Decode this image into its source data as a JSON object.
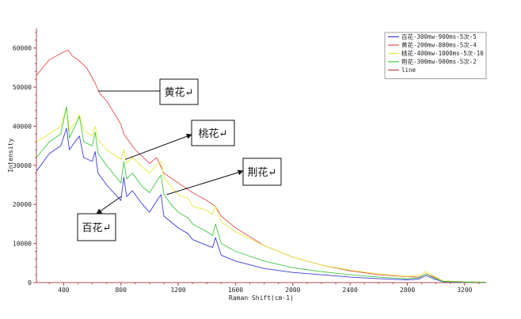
{
  "chart_data": {
    "type": "line",
    "xlabel": "Raman Shift(cm-1)",
    "ylabel": "Intensity",
    "xlim": [
      210,
      3350
    ],
    "ylim": [
      0,
      65000
    ],
    "x_ticks": [
      400,
      800,
      1200,
      1600,
      2000,
      2400,
      2800,
      3200
    ],
    "y_ticks": [
      0,
      10000,
      20000,
      30000,
      40000,
      50000,
      60000
    ],
    "grid": false,
    "legend_position": "top-right",
    "series": [
      {
        "name": "百花-300mw-900ms-5次-5",
        "color": "#3a3adf",
        "x": [
          210,
          300,
          380,
          420,
          440,
          480,
          510,
          540,
          600,
          620,
          640,
          700,
          800,
          820,
          840,
          880,
          950,
          1000,
          1060,
          1080,
          1100,
          1150,
          1200,
          1270,
          1300,
          1400,
          1440,
          1460,
          1500,
          1600,
          1800,
          2000,
          2200,
          2400,
          2600,
          2800,
          2880,
          2930,
          2980,
          3050,
          3200,
          3350
        ],
        "y": [
          28500,
          33000,
          35000,
          39500,
          34000,
          36000,
          37500,
          32000,
          31000,
          33500,
          28000,
          25000,
          21000,
          27000,
          22000,
          23500,
          20000,
          18000,
          21500,
          22500,
          17000,
          15500,
          14000,
          12500,
          11000,
          9500,
          9000,
          11500,
          7000,
          5500,
          3600,
          2600,
          2000,
          1400,
          1000,
          700,
          900,
          1800,
          1000,
          200,
          100,
          50
        ]
      },
      {
        "name": "黄花-200mw-800ms-5次-4",
        "color": "#e05050",
        "x": [
          210,
          300,
          350,
          400,
          430,
          460,
          500,
          560,
          620,
          650,
          700,
          800,
          820,
          900,
          1000,
          1050,
          1100,
          1200,
          1300,
          1400,
          1460,
          1500,
          1600,
          1800,
          2000,
          2200,
          2400,
          2600,
          2800,
          2880,
          2930,
          2980,
          3050,
          3200,
          3350
        ],
        "y": [
          53000,
          57000,
          58000,
          59000,
          59500,
          58000,
          57000,
          55000,
          51000,
          48500,
          46500,
          40500,
          38000,
          34000,
          30500,
          32000,
          28000,
          25500,
          23000,
          21000,
          19500,
          17000,
          14000,
          9500,
          6500,
          4500,
          3000,
          2000,
          1500,
          1400,
          2200,
          1500,
          400,
          200,
          100
        ]
      },
      {
        "name": "桃花-400mw-1000ms-5次-10",
        "color": "#e8e840",
        "x": [
          210,
          300,
          380,
          420,
          440,
          480,
          510,
          540,
          600,
          620,
          640,
          700,
          800,
          820,
          840,
          880,
          950,
          1000,
          1060,
          1080,
          1100,
          1150,
          1200,
          1270,
          1300,
          1400,
          1440,
          1460,
          1500,
          1600,
          1800,
          2000,
          2200,
          2400,
          2600,
          2800,
          2880,
          2930,
          2980,
          3050,
          3200,
          3350
        ],
        "y": [
          36000,
          38000,
          40000,
          45000,
          39000,
          41000,
          43000,
          39000,
          37500,
          40000,
          36500,
          34000,
          31500,
          34000,
          30500,
          32000,
          29500,
          28000,
          30500,
          31000,
          27000,
          24500,
          22500,
          21500,
          19500,
          18500,
          17500,
          19500,
          15500,
          13000,
          9500,
          6500,
          4500,
          3200,
          2200,
          1600,
          1800,
          2800,
          1800,
          400,
          200,
          100
        ]
      },
      {
        "name": "荆花-300mw-900ms-5次-2",
        "color": "#40c840",
        "x": [
          210,
          300,
          380,
          420,
          440,
          480,
          510,
          540,
          600,
          620,
          640,
          700,
          800,
          820,
          840,
          880,
          950,
          1000,
          1060,
          1080,
          1100,
          1150,
          1200,
          1270,
          1300,
          1400,
          1440,
          1460,
          1500,
          1600,
          1800,
          2000,
          2200,
          2400,
          2600,
          2800,
          2880,
          2930,
          2980,
          3050,
          3200,
          3350
        ],
        "y": [
          32000,
          36000,
          38000,
          45000,
          37000,
          40000,
          42500,
          36000,
          35000,
          38500,
          33000,
          30000,
          25500,
          31000,
          26500,
          28000,
          24500,
          23000,
          26500,
          27500,
          22500,
          20000,
          18000,
          16500,
          15000,
          13000,
          12000,
          15000,
          10000,
          8000,
          5500,
          3800,
          2800,
          2000,
          1400,
          1000,
          1200,
          2200,
          1300,
          300,
          150,
          80
        ]
      },
      {
        "name": "line",
        "color": "#b44848",
        "x": [],
        "y": []
      }
    ],
    "annotations": [
      {
        "label": "黄花↵",
        "target": [
          640,
          49000
        ]
      },
      {
        "label": "桃花↵",
        "target": [
          830,
          31500
        ]
      },
      {
        "label": "荆花↵",
        "target": [
          1120,
          22500
        ]
      },
      {
        "label": "百花↵",
        "target": [
          620,
          18500
        ]
      }
    ]
  }
}
